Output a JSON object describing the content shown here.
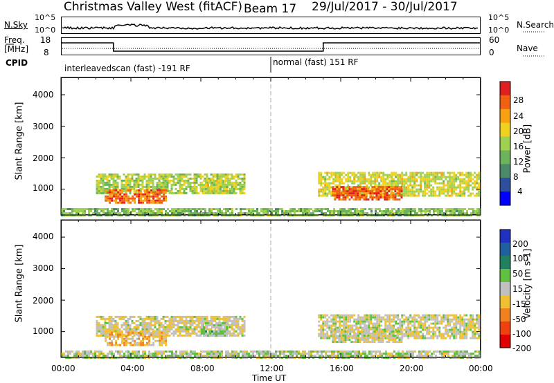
{
  "header": {
    "title": "Christmas Valley West (fitACF)",
    "beam": "Beam 17",
    "date_range": "29/Jul/2017 - 30/Jul/2017"
  },
  "top_panels": {
    "nsky_label": "N.Sky",
    "nsky_ticks": [
      "10^5",
      "10^0"
    ],
    "nsearch_label": "N.Search",
    "nsearch_ticks": [
      "10^5",
      "10^0"
    ],
    "freq_label_line1": "Freq.",
    "freq_label_line2": "[MHz]",
    "freq_ticks": [
      "18",
      "8"
    ],
    "nave_label": "Nave",
    "nave_ticks": [
      "60",
      "0"
    ],
    "cpid_label": "CPID",
    "cpid_segments": [
      {
        "text": "interleavedscan (fast) -191 RF"
      },
      {
        "text": "normal (fast) 151 RF"
      }
    ]
  },
  "power_panel": {
    "ylabel": "Slant Range [km]",
    "yticks": [
      "4000",
      "3000",
      "2000",
      "1000"
    ],
    "colorbar_label": "Power [dB]",
    "colorbar_ticks": [
      "28",
      "24",
      "20",
      "16",
      "12",
      "8",
      "4"
    ],
    "colors": [
      "#0000ff",
      "#2e4f9f",
      "#4a8a6a",
      "#6db35a",
      "#a0d050",
      "#f0d020",
      "#f8a010",
      "#f06010",
      "#e02020"
    ]
  },
  "velocity_panel": {
    "ylabel": "Slant Range [km]",
    "yticks": [
      "4000",
      "3000",
      "2000",
      "1000"
    ],
    "colorbar_label": "Velocity [m s-1]",
    "colorbar_ticks": [
      "200",
      "100",
      "50",
      "15",
      "-15",
      "-50",
      "-100",
      "-200"
    ],
    "colors": [
      "#2030c0",
      "#2060a0",
      "#208060",
      "#60c040",
      "#c0c0c0",
      "#f0c030",
      "#f08020",
      "#f04010",
      "#e00000"
    ]
  },
  "xaxis": {
    "ticks": [
      "00:00",
      "04:00",
      "08:00",
      "12:00",
      "16:00",
      "20:00",
      "00:00"
    ],
    "label": "Time UT"
  },
  "chart_data": {
    "type": "heatmap",
    "title": "Christmas Valley West (fitACF)",
    "x_range_hours": [
      0,
      24
    ],
    "xlabel": "Time UT",
    "ylabel": "Slant Range [km]",
    "ylim": [
      180,
      4550
    ],
    "cpid_change_hour": 12.0,
    "frequency_change_hours": [
      3.0,
      15.0
    ],
    "power_scale_db": [
      0,
      32
    ],
    "velocity_scale_ms": [
      -250,
      250
    ],
    "echo_regions": [
      {
        "start_hour": 2.0,
        "end_hour": 10.5,
        "range_km": [
          900,
          1500
        ],
        "power_db": 16,
        "velocity_ms": -20
      },
      {
        "start_hour": 2.5,
        "end_hour": 6.0,
        "range_km": [
          600,
          1000
        ],
        "power_db": 26,
        "velocity_ms": -60
      },
      {
        "start_hour": 14.7,
        "end_hour": 23.9,
        "range_km": [
          800,
          1550
        ],
        "power_db": 18,
        "velocity_ms": -10
      },
      {
        "start_hour": 15.5,
        "end_hour": 19.5,
        "range_km": [
          700,
          1100
        ],
        "power_db": 27,
        "velocity_ms": -15
      },
      {
        "start_hour": 8.0,
        "end_hour": 9.5,
        "range_km": [
          900,
          1300
        ],
        "power_db": 18,
        "velocity_ms": 30
      },
      {
        "start_hour": 0.0,
        "end_hour": 24.0,
        "range_km": [
          180,
          400
        ],
        "power_db": 14,
        "velocity_ms": 10
      }
    ]
  }
}
